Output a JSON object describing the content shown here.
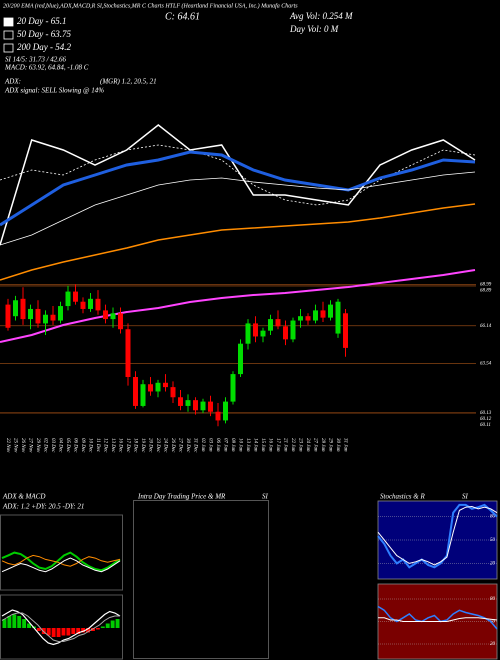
{
  "chart_data": [
    {
      "type": "candlestick",
      "title": "20/200 EMA (red,blue),ADX,MACD,R SI,Stochastics,MR C Charts HTLF (Heartland Financial USA, Inc.) Munafa Charts",
      "close_label": "C: 64.61",
      "avg_vol": "Avg Vol: 0.254 M",
      "day_vol": "Day Vol: 0 M",
      "legend": [
        {
          "label": "20 Day - 65.1",
          "color": "#ffffff"
        },
        {
          "label": "50 Day - 63.75",
          "color": "#000000"
        },
        {
          "label": "200 Day - 54.2",
          "color": "#000000"
        }
      ],
      "indicators": [
        "SI 14/5: 31.73 / 42.66",
        "MACD: 63.92, 64.84, -1.08 C",
        "ADX:",
        "(MGR) 1.2, 20.5, 21",
        "ADX  signal: SELL Slowing @ 14%"
      ],
      "categories": [
        "22 Nov",
        "25 Nov",
        "26 Nov",
        "27 Nov",
        "29 Nov",
        "02 Dec",
        "03 Dec",
        "04 Dec",
        "05 Dec",
        "06 Dec",
        "09 Dec",
        "10 Dec",
        "11 Dec",
        "12 Dec",
        "13 Dec",
        "16 Dec",
        "17 Dec",
        "18 Dec",
        "19 Dec",
        "20 Dec",
        "23 Dec",
        "24 Dec",
        "26 Dec",
        "27 Dec",
        "30 Dec",
        "31 Dec",
        "02 Jan",
        "03 Jan",
        "06 Jan",
        "07 Jan",
        "08 Jan",
        "10 Jan",
        "13 Jan",
        "14 Jan",
        "15 Jan",
        "16 Jan",
        "17 Jan",
        "21 Jan",
        "22 Jan",
        "23 Jan",
        "24 Jan",
        "27 Jan",
        "28 Jan",
        "29 Jan",
        "30 Jan",
        "31 Jan"
      ],
      "open": [
        67.6,
        66.8,
        68.0,
        66.6,
        67.3,
        66.3,
        66.9,
        66.5,
        67.5,
        68.5,
        67.8,
        67.3,
        68.0,
        67.2,
        66.6,
        67.0,
        65.9,
        62.6,
        60.6,
        62.1,
        61.6,
        62.2,
        61.9,
        61.2,
        60.6,
        61.0,
        60.3,
        60.9,
        60.2,
        59.6,
        60.9,
        62.8,
        64.9,
        66.3,
        65.4,
        65.8,
        66.6,
        66.1,
        65.2,
        66.5,
        66.8,
        66.5,
        67.2,
        66.7,
        65.6,
        67.0
      ],
      "high": [
        68.0,
        68.2,
        68.8,
        67.6,
        67.9,
        67.2,
        67.5,
        67.8,
        68.9,
        69.0,
        68.1,
        68.4,
        68.6,
        67.6,
        67.4,
        67.4,
        66.3,
        63.0,
        62.4,
        62.6,
        62.4,
        62.8,
        62.3,
        61.7,
        61.4,
        61.2,
        61.1,
        61.3,
        60.8,
        61.2,
        63.0,
        65.2,
        66.6,
        66.8,
        66.0,
        66.9,
        67.2,
        66.5,
        66.7,
        67.3,
        67.0,
        67.6,
        67.8,
        67.9,
        68.0,
        67.3
      ],
      "low": [
        65.8,
        66.5,
        66.2,
        65.9,
        66.0,
        65.5,
        66.2,
        66.3,
        67.2,
        67.6,
        67.0,
        67.1,
        66.9,
        66.3,
        66.0,
        65.6,
        62.0,
        60.4,
        60.5,
        61.3,
        61.2,
        61.6,
        60.8,
        60.3,
        60.2,
        60.0,
        60.1,
        59.9,
        59.2,
        59.4,
        60.7,
        62.6,
        64.5,
        65.0,
        65.0,
        65.5,
        65.9,
        64.8,
        65.0,
        66.0,
        66.2,
        66.3,
        66.4,
        66.5,
        65.3,
        64.0
      ],
      "close": [
        66.0,
        67.9,
        66.6,
        67.3,
        66.3,
        66.9,
        66.5,
        67.5,
        68.5,
        67.8,
        67.3,
        68.0,
        67.2,
        66.6,
        67.0,
        65.9,
        62.6,
        60.6,
        62.1,
        61.6,
        62.2,
        61.9,
        61.2,
        60.6,
        61.0,
        60.3,
        60.9,
        60.2,
        59.6,
        60.9,
        62.8,
        64.9,
        66.3,
        65.4,
        65.8,
        66.6,
        66.1,
        65.2,
        66.5,
        66.8,
        66.5,
        67.2,
        66.7,
        67.6,
        67.8,
        64.61
      ],
      "up_color": "#00dd00",
      "down_color": "#ff0000",
      "grid_color": "#8b4513",
      "ylim": [
        58.8,
        69.3
      ],
      "yticks": [
        68.99,
        68.89,
        66.14,
        63.54,
        60.13,
        60.12,
        60.11
      ]
    },
    {
      "type": "line",
      "ylim": [
        0,
        100
      ],
      "series": [
        {
          "color": "#ffffff",
          "width": 1.5,
          "values": [
            42,
            84,
            80,
            74,
            80,
            90,
            80,
            82,
            62,
            62,
            60,
            58,
            74,
            80,
            84,
            76
          ]
        },
        {
          "color": "#ffffff",
          "width": 0.8,
          "dash": true,
          "values": [
            68,
            72,
            70,
            76,
            80,
            82,
            80,
            76,
            66,
            60,
            58,
            60,
            68,
            74,
            80,
            78
          ]
        },
        {
          "color": "#1f5fe0",
          "width": 3,
          "values": [
            50,
            58,
            66,
            70,
            74,
            76,
            79.2,
            78,
            72,
            68,
            66,
            64,
            68.8,
            72,
            76,
            75.2
          ]
        },
        {
          "color": "#ffffff",
          "width": 0.8,
          "values": [
            42,
            46,
            52,
            58,
            62,
            66,
            68,
            68.8,
            67.2,
            66,
            64.8,
            64,
            66,
            68,
            70,
            71.2
          ]
        },
        {
          "color": "#ff8c00",
          "width": 1.5,
          "values": [
            28,
            32,
            35.2,
            38,
            40.8,
            44,
            46,
            48,
            48.8,
            49.6,
            50.4,
            51.2,
            52.8,
            54.8,
            56.8,
            58.4
          ]
        },
        {
          "color": "#ff44ff",
          "width": 2,
          "values": [
            3.2,
            6,
            10,
            12.8,
            15.2,
            16.8,
            19.2,
            20.8,
            22,
            22.8,
            24,
            25.2,
            26.8,
            28.4,
            30,
            32
          ]
        }
      ]
    },
    {
      "type": "line",
      "title": "ADX  & MACD",
      "subtitle": "ADX: 1.2  +DY: 20.5  -DY: 21",
      "ylim": [
        0,
        50
      ],
      "series": [
        {
          "color": "#00cc00",
          "width": 2,
          "values": [
            22,
            24,
            26,
            25,
            22,
            18,
            15,
            14,
            16,
            20,
            24,
            26,
            23,
            19,
            16,
            14,
            13,
            15,
            18,
            21
          ]
        },
        {
          "color": "#ff8c00",
          "width": 1,
          "values": [
            20,
            18,
            17,
            19,
            22,
            24,
            23,
            21,
            20,
            19,
            17,
            16,
            18,
            21,
            23,
            22,
            20,
            19,
            20,
            21
          ]
        },
        {
          "color": "#ffffff",
          "width": 1,
          "values": [
            12,
            14,
            16,
            18,
            17,
            15,
            13,
            12,
            14,
            17,
            20,
            22,
            20,
            17,
            15,
            13,
            12,
            14,
            17,
            20
          ]
        }
      ]
    },
    {
      "type": "macd",
      "ylim": [
        -2,
        2
      ],
      "up_color": "#00cc00",
      "down_color": "#ff0000",
      "histogram": [
        0.6,
        0.8,
        0.9,
        0.8,
        0.6,
        0.3,
        0.1,
        -0.2,
        -0.4,
        -0.5,
        -0.6,
        -0.6,
        -0.5,
        -0.5,
        -0.4,
        -0.4,
        -0.3,
        -0.3,
        -0.2,
        -0.1,
        0.1,
        0.3,
        0.5,
        0.6
      ],
      "series": [
        {
          "color": "#ffffff",
          "width": 1.2,
          "values": [
            0.8,
            1.0,
            1.2,
            1.1,
            0.9,
            0.5,
            0.1,
            -0.3,
            -0.7,
            -1.0,
            -1.1,
            -1.0,
            -0.8,
            -0.7,
            -0.5,
            -0.3,
            -0.2,
            0,
            0.3,
            0.6,
            0.9,
            1.1,
            1.0,
            0.8
          ]
        },
        {
          "color": "#aaaaaa",
          "width": 1,
          "values": [
            0.5,
            0.7,
            0.9,
            1.0,
            1.0,
            0.8,
            0.5,
            0.2,
            -0.2,
            -0.5,
            -0.8,
            -0.9,
            -0.9,
            -0.8,
            -0.7,
            -0.5,
            -0.4,
            -0.2,
            0,
            0.2,
            0.5,
            0.7,
            0.8,
            0.8
          ]
        }
      ]
    },
    {
      "type": "empty",
      "title": "Intra Day Trading Price & MR",
      "subtitle": "SI"
    },
    {
      "type": "line",
      "title": "Stochastics & R",
      "subtitle": "SI",
      "background": "#00007a",
      "ylim": [
        0,
        100
      ],
      "yticks": [
        80,
        50,
        20
      ],
      "series": [
        {
          "color": "#2f7fff",
          "width": 2,
          "values": [
            55,
            45,
            30,
            20,
            25,
            15,
            20,
            25,
            18,
            15,
            20,
            30,
            85,
            95,
            95,
            90,
            92,
            95,
            88,
            80
          ]
        },
        {
          "color": "#ffffff",
          "width": 1,
          "values": [
            60,
            50,
            40,
            30,
            25,
            20,
            22,
            25,
            22,
            18,
            22,
            28,
            60,
            88,
            92,
            93,
            90,
            92,
            90,
            85
          ]
        }
      ]
    },
    {
      "type": "line",
      "background": "#7a0000",
      "ylim": [
        0,
        100
      ],
      "yticks": [
        80,
        50,
        20
      ],
      "series": [
        {
          "color": "#2f7fff",
          "width": 1.5,
          "values": [
            70,
            65,
            55,
            50,
            55,
            60,
            52,
            50,
            55,
            58,
            50,
            52,
            60,
            65,
            62,
            60,
            58,
            55,
            50,
            40
          ]
        },
        {
          "color": "#ffffff",
          "width": 1,
          "values": [
            55,
            55,
            52,
            52,
            50,
            50,
            50,
            50,
            50,
            50,
            50,
            50,
            52,
            54,
            55,
            55,
            55,
            54,
            53,
            52
          ]
        }
      ]
    }
  ]
}
